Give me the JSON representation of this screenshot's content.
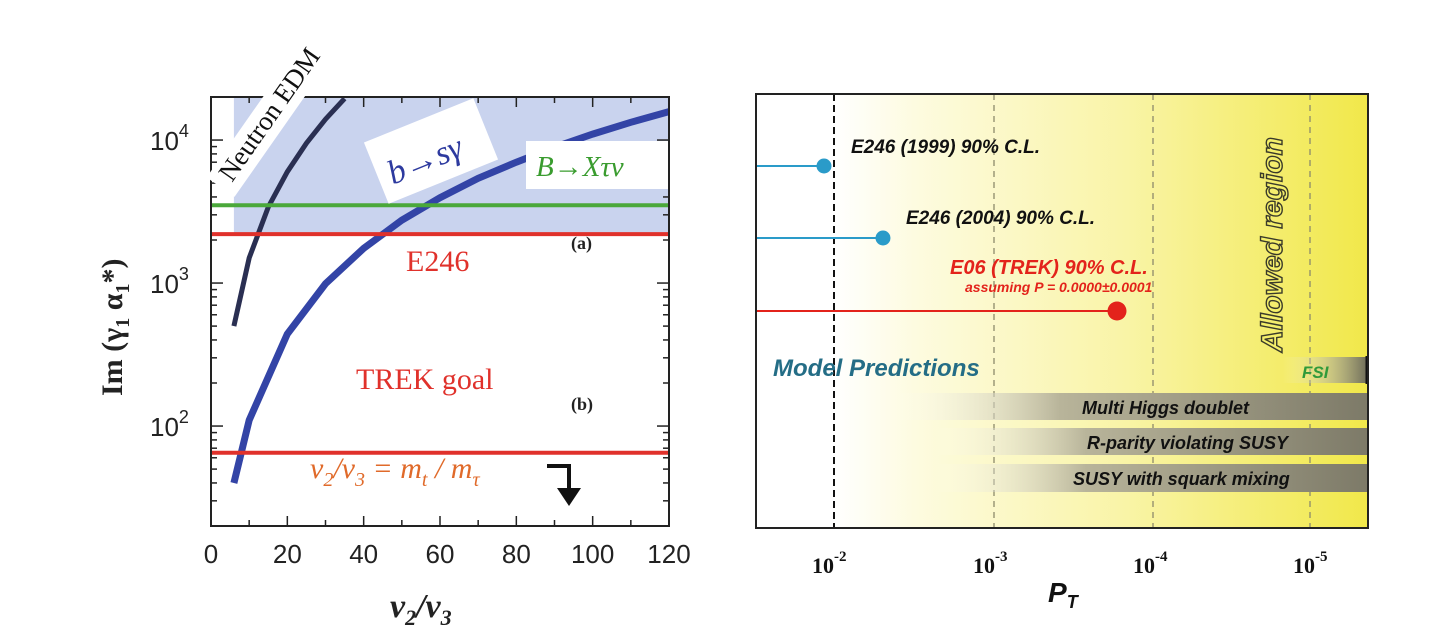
{
  "chart_data": [
    {
      "type": "line",
      "title": "",
      "xlabel": "v2/v3",
      "xlabel_main": "v",
      "xlabel_sub1": "2",
      "xlabel_sep": "/v",
      "xlabel_sub2": "3",
      "ylabel": "Im (γ1 α1*)",
      "ylabel_main": "Im (γ",
      "ylabel_sub1": "1",
      "ylabel_mid": " α",
      "ylabel_sub2": "1",
      "ylabel_end": "*)",
      "xlim": [
        0,
        120
      ],
      "ylim": [
        20,
        20000
      ],
      "yscale": "log",
      "x_ticks": [
        0,
        20,
        40,
        60,
        80,
        100,
        120
      ],
      "x_tick_labels": [
        "0",
        "20",
        "40",
        "60",
        "80",
        "100",
        "120"
      ],
      "y_ticks": [
        100,
        1000,
        10000
      ],
      "y_tick_labels": [
        {
          "base": "10",
          "exp": "2"
        },
        {
          "base": "10",
          "exp": "3"
        },
        {
          "base": "10",
          "exp": "4"
        }
      ],
      "shaded_region": {
        "ymin": 2200,
        "color": "#c9d3ee"
      },
      "series": [
        {
          "name": "Neutron EDM",
          "color": "#2a2f52",
          "x": [
            6,
            10,
            15,
            20,
            25,
            30,
            35
          ],
          "y": [
            500,
            1500,
            3400,
            6000,
            9500,
            14000,
            19500
          ]
        },
        {
          "name": "b→sγ",
          "color": "#3344a6",
          "x": [
            6,
            10,
            20,
            30,
            40,
            50,
            60,
            70,
            80,
            90,
            100,
            110,
            120
          ],
          "y": [
            40,
            110,
            440,
            990,
            1750,
            2750,
            3950,
            5400,
            7000,
            8900,
            11000,
            13300,
            15800
          ]
        }
      ],
      "hlines": [
        {
          "name": "B→Xτν",
          "y": 3500,
          "color": "#4aa83a"
        },
        {
          "name": "E246",
          "y": 2200,
          "color": "#e0312b"
        },
        {
          "name": "TREK goal",
          "y": 65,
          "color": "#e0312b"
        }
      ],
      "labels": {
        "neutron_edm": "Neutron EDM",
        "bsg": "b→sγ",
        "bxtn": "B→Xτν",
        "e246": "E246",
        "trek_goal": "TREK goal",
        "a": "(a)",
        "b": "(b)",
        "ratio_left": "v",
        "ratio_left_sub1": "2",
        "ratio_left_sep": "/v",
        "ratio_left_sub2": "3",
        "ratio_eq": " = m",
        "ratio_right_sub1": "t",
        "ratio_right_sep": " / m",
        "ratio_right_sub2": "τ"
      }
    },
    {
      "type": "scatter",
      "title": "",
      "xlabel": "PT",
      "xlabel_main": "P",
      "xlabel_sub": "T",
      "xscale": "log-reversed",
      "x_tick_labels": [
        {
          "base": "10",
          "exp": "-2"
        },
        {
          "base": "10",
          "exp": "-3"
        },
        {
          "base": "10",
          "exp": "-4"
        },
        {
          "base": "10",
          "exp": "-5"
        }
      ],
      "limits": [
        {
          "name": "E246 (1999) 90% C.L.",
          "value": 0.012,
          "color": "#2a9bc9"
        },
        {
          "name": "E246 (2004) 90% C.L.",
          "value": 0.0052,
          "color": "#2a9bc9"
        },
        {
          "name": "E06 (TREK) 90% C.L.",
          "value": 0.00021,
          "color": "#e3231b",
          "note": "assuming  P = 0.0000±0.0001"
        }
      ],
      "regions": {
        "allowed": "Allowed region",
        "model_predictions": "Model Predictions"
      },
      "models": [
        {
          "name": "FSI",
          "color": "#2f9a3a"
        },
        {
          "name": "Multi Higgs doublet"
        },
        {
          "name": "R-parity violating SUSY"
        },
        {
          "name": "SUSY with squark mixing"
        }
      ]
    }
  ]
}
